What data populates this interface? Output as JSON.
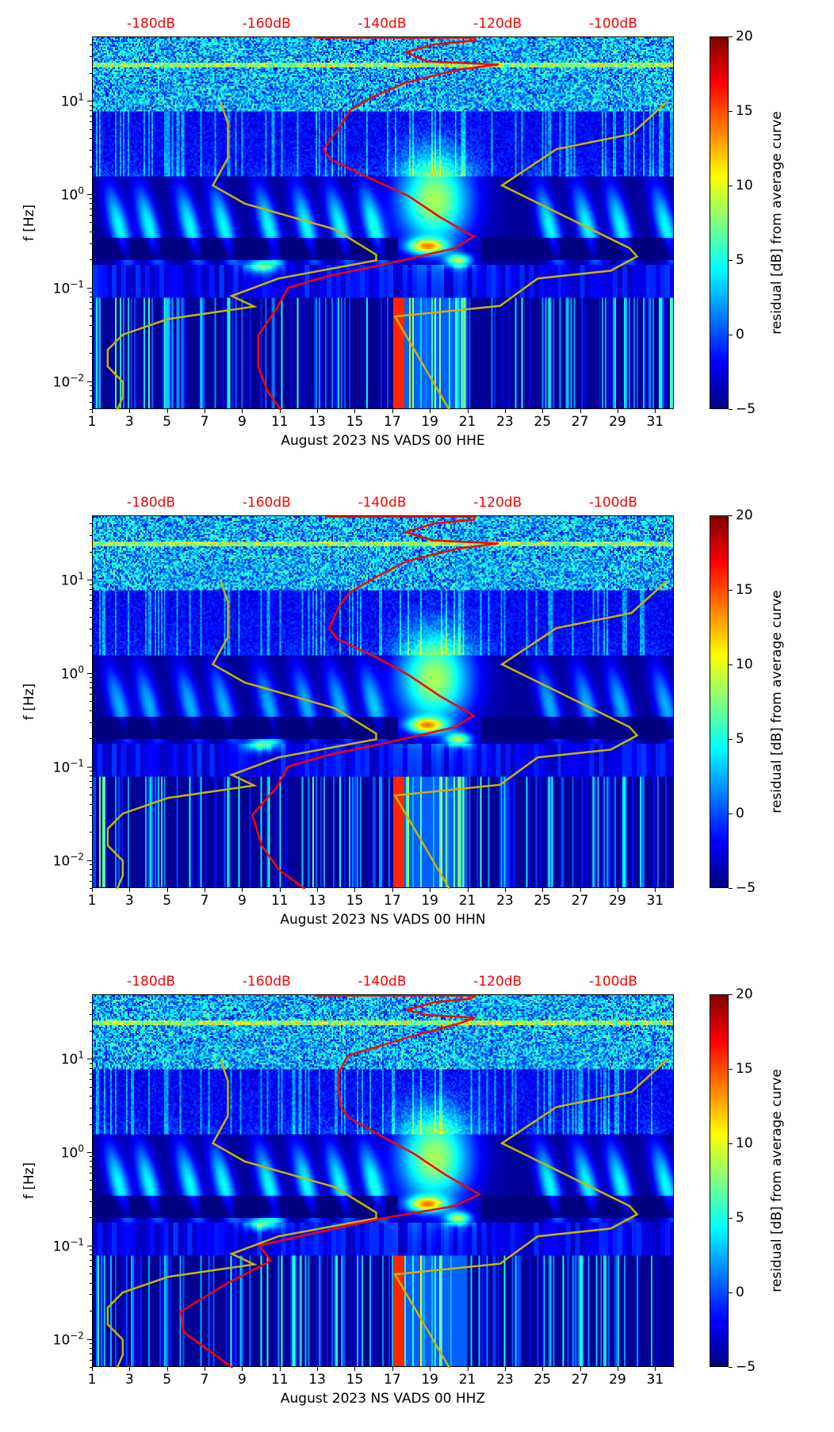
{
  "chart_data": [
    {
      "type": "heatmap",
      "xlabel": "August 2023 NS VADS 00 HHE",
      "ylabel": "f [Hz]",
      "colorbar_label": "residual [dB] from average curve",
      "red_curve": [
        [
          -152,
          48.5
        ],
        [
          -124,
          48.5
        ],
        [
          -124.3,
          45
        ],
        [
          -131.1,
          41
        ],
        [
          -136.0,
          34
        ],
        [
          -132.4,
          27
        ],
        [
          -120.0,
          25
        ],
        [
          -127.2,
          22
        ],
        [
          -136.0,
          16
        ],
        [
          -142.1,
          11
        ],
        [
          -145.7,
          8.1
        ],
        [
          -147.7,
          5.1
        ],
        [
          -150.3,
          3.1
        ],
        [
          -149.0,
          2.4
        ],
        [
          -142.1,
          1.5
        ],
        [
          -135.6,
          0.98
        ],
        [
          -130.1,
          0.58
        ],
        [
          -124.3,
          0.36
        ],
        [
          -127.5,
          0.27
        ],
        [
          -139.9,
          0.18
        ],
        [
          -149.0,
          0.138
        ],
        [
          -156.4,
          0.102
        ],
        [
          -158.4,
          0.061
        ],
        [
          -161.6,
          0.031
        ],
        [
          -161.6,
          0.0146
        ],
        [
          -160.0,
          0.008
        ],
        [
          -157.7,
          0.005
        ]
      ],
      "storm_seed": 1
    },
    {
      "type": "heatmap",
      "xlabel": "August 2023 NS VADS 00 HHN",
      "ylabel": "f [Hz]",
      "colorbar_label": "residual [dB] from average curve",
      "red_curve": [
        [
          -150,
          48.5
        ],
        [
          -124,
          48.5
        ],
        [
          -124.3,
          45
        ],
        [
          -131.1,
          41
        ],
        [
          -136.0,
          33
        ],
        [
          -131.4,
          27
        ],
        [
          -120.0,
          25
        ],
        [
          -127.2,
          22
        ],
        [
          -136.0,
          16
        ],
        [
          -141.1,
          11
        ],
        [
          -145.7,
          7.5
        ],
        [
          -147.7,
          5.1
        ],
        [
          -149.3,
          3.1
        ],
        [
          -148.0,
          2.4
        ],
        [
          -141.1,
          1.5
        ],
        [
          -135.6,
          0.98
        ],
        [
          -130.1,
          0.58
        ],
        [
          -124.3,
          0.36
        ],
        [
          -127.5,
          0.27
        ],
        [
          -139.9,
          0.18
        ],
        [
          -149.0,
          0.138
        ],
        [
          -156.4,
          0.102
        ],
        [
          -158.4,
          0.061
        ],
        [
          -162.6,
          0.031
        ],
        [
          -161.0,
          0.0146
        ],
        [
          -158.0,
          0.008
        ],
        [
          -153.5,
          0.005
        ]
      ],
      "storm_seed": 2
    },
    {
      "type": "heatmap",
      "xlabel": "August 2023 NS VADS 00 HHZ",
      "ylabel": "f [Hz]",
      "colorbar_label": "residual [dB] from average curve",
      "red_curve": [
        [
          -152,
          48.5
        ],
        [
          -124,
          48.5
        ],
        [
          -124.8,
          45
        ],
        [
          -131.1,
          41
        ],
        [
          -136.0,
          34
        ],
        [
          -132.4,
          30
        ],
        [
          -124.0,
          28
        ],
        [
          -127.2,
          24
        ],
        [
          -136.0,
          17
        ],
        [
          -146.1,
          11
        ],
        [
          -147.7,
          7.1
        ],
        [
          -147.7,
          5.1
        ],
        [
          -147.3,
          3.1
        ],
        [
          -146.0,
          2.4
        ],
        [
          -140.1,
          1.5
        ],
        [
          -134.6,
          0.98
        ],
        [
          -129.1,
          0.58
        ],
        [
          -123.3,
          0.36
        ],
        [
          -127.5,
          0.27
        ],
        [
          -139.9,
          0.2
        ],
        [
          -152.0,
          0.138
        ],
        [
          -161.4,
          0.102
        ],
        [
          -159.4,
          0.07
        ],
        [
          -167.0,
          0.04
        ],
        [
          -175.0,
          0.02
        ],
        [
          -174.5,
          0.012
        ],
        [
          -166.0,
          0.005
        ]
      ],
      "storm_seed": 3
    }
  ],
  "shared": {
    "x_range_days": [
      1,
      32
    ],
    "x_ticks": [
      "1",
      "3",
      "5",
      "7",
      "9",
      "11",
      "13",
      "15",
      "17",
      "19",
      "21",
      "23",
      "25",
      "27",
      "29",
      "31"
    ],
    "y_range_hz": [
      0.005,
      49
    ],
    "y_ticks": [
      {
        "v": 0.01,
        "base": "10",
        "exp": "−2"
      },
      {
        "v": 0.1,
        "base": "10",
        "exp": "−1"
      },
      {
        "v": 1,
        "base": "10",
        "exp": "0"
      },
      {
        "v": 10,
        "base": "10",
        "exp": "1"
      }
    ],
    "top_axis_ticks": [
      {
        "db": -180,
        "label": "-180dB"
      },
      {
        "db": -160,
        "label": "-160dB"
      },
      {
        "db": -140,
        "label": "-140dB"
      },
      {
        "db": -120,
        "label": "-120dB"
      },
      {
        "db": -100,
        "label": "-100dB"
      }
    ],
    "colorbar_range": [
      -5,
      20
    ],
    "colorbar_ticks": [
      "20",
      "15",
      "10",
      "5",
      "0",
      "−5"
    ],
    "low_noise_model": [
      [
        7.8,
        10
      ],
      [
        8.2,
        5.9
      ],
      [
        8.2,
        2.5
      ],
      [
        7.4,
        1.27
      ],
      [
        9.1,
        0.81
      ],
      [
        13.9,
        0.43
      ],
      [
        16.1,
        0.23
      ],
      [
        16.1,
        0.2
      ],
      [
        10.9,
        0.128
      ],
      [
        8.4,
        0.083
      ],
      [
        9.6,
        0.064
      ],
      [
        5.0,
        0.047
      ],
      [
        2.6,
        0.032
      ],
      [
        1.8,
        0.022
      ],
      [
        1.8,
        0.0146
      ],
      [
        2.6,
        0.01
      ],
      [
        2.6,
        0.0069
      ],
      [
        2.3,
        0.005
      ]
    ],
    "high_noise_model": [
      [
        31.6,
        10
      ],
      [
        29.7,
        4.5
      ],
      [
        25.7,
        3.1
      ],
      [
        22.8,
        1.27
      ],
      [
        29.6,
        0.27
      ],
      [
        30.0,
        0.22
      ],
      [
        28.6,
        0.155
      ],
      [
        24.7,
        0.128
      ],
      [
        22.7,
        0.065
      ],
      [
        17.1,
        0.05
      ],
      [
        20.0,
        0.005
      ]
    ],
    "colors": {
      "red_curve": "#ff0000",
      "model_curve": "#c8b400",
      "top_axis": "#ff0000"
    }
  }
}
